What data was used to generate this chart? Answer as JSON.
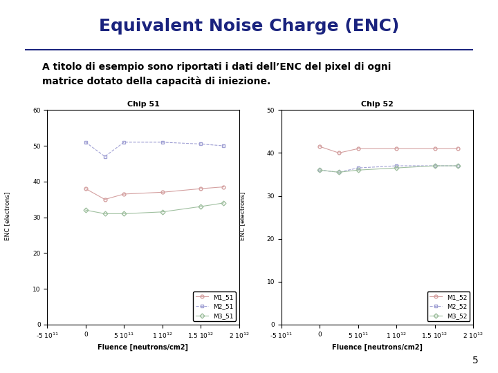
{
  "title": "Equivalent Noise Charge (ENC)",
  "subtitle_line1": "A titolo di esempio sono riportati i dati dell’ENC del pixel di ogni",
  "subtitle_line2": "matrice dotato della capacità di iniezione.",
  "page_number": "5",
  "chip51_title": "Chip 51",
  "chip52_title": "Chip 52",
  "xlabel": "Fluence [neutrons/cm2]",
  "ylabel": "ENC [electrons]",
  "fluence_x": [
    0,
    250000000000.0,
    500000000000.0,
    1000000000000.0,
    1500000000000.0,
    1800000000000.0
  ],
  "chip51_M1": [
    38.0,
    35.0,
    36.5,
    37.0,
    38.0,
    38.5
  ],
  "chip51_M2": [
    51.0,
    47.0,
    51.0,
    51.0,
    50.5,
    50.0
  ],
  "chip51_M3": [
    32.0,
    31.0,
    31.0,
    31.5,
    33.0,
    34.0
  ],
  "chip52_M1": [
    41.5,
    40.0,
    41.0,
    41.0,
    41.0,
    41.0
  ],
  "chip52_M2": [
    36.0,
    35.5,
    36.5,
    37.0,
    37.0,
    37.0
  ],
  "chip52_M3": [
    36.0,
    35.5,
    36.0,
    36.5,
    37.0,
    37.0
  ],
  "color_M1": "#d4a0a0",
  "color_M2": "#a0a0d4",
  "color_M3": "#a0c0a0",
  "bg_color": "#ffffff",
  "title_color": "#1a237e",
  "rule_color": "#1a237e",
  "bullet_color": "#8b2000",
  "text_color": "#000000",
  "xlim": [
    -500000000000.0,
    2000000000000.0
  ],
  "chip51_ylim": [
    0,
    60
  ],
  "chip52_ylim": [
    0,
    50
  ],
  "chip51_yticks": [
    0,
    10,
    20,
    30,
    40,
    50,
    60
  ],
  "chip52_yticks": [
    0,
    10,
    20,
    30,
    40,
    50
  ],
  "xticks": [
    -500000000000.0,
    0,
    500000000000.0,
    1000000000000.0,
    1500000000000.0,
    2000000000000.0
  ]
}
